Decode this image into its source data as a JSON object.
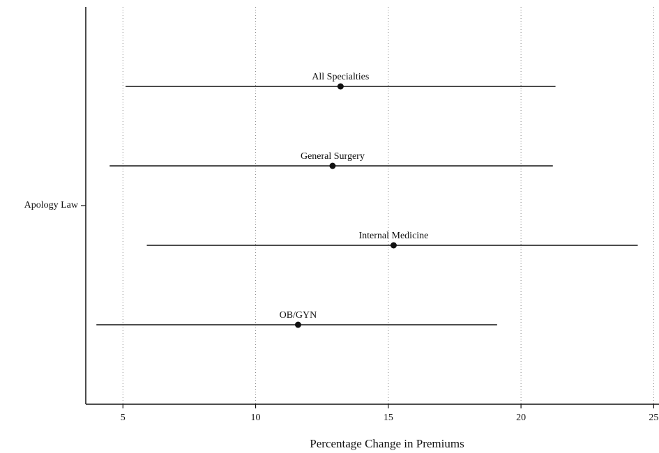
{
  "chart_data": {
    "type": "coefplot",
    "xlabel": "Percentage Change in Premiums",
    "categories": [
      "Apology Law"
    ],
    "labels": [
      "All Specialties",
      "General Surgery",
      "Internal Medicine",
      "OB/GYN"
    ],
    "estimates": [
      13.2,
      12.9,
      15.2,
      11.6
    ],
    "lower": [
      5.1,
      4.5,
      5.9,
      4.0
    ],
    "upper": [
      21.3,
      21.2,
      24.4,
      19.1
    ],
    "color": "#111111",
    "xlim": [
      3.6,
      25.2
    ],
    "xticks": [
      5,
      10,
      15,
      20,
      25
    ],
    "grid": true
  }
}
